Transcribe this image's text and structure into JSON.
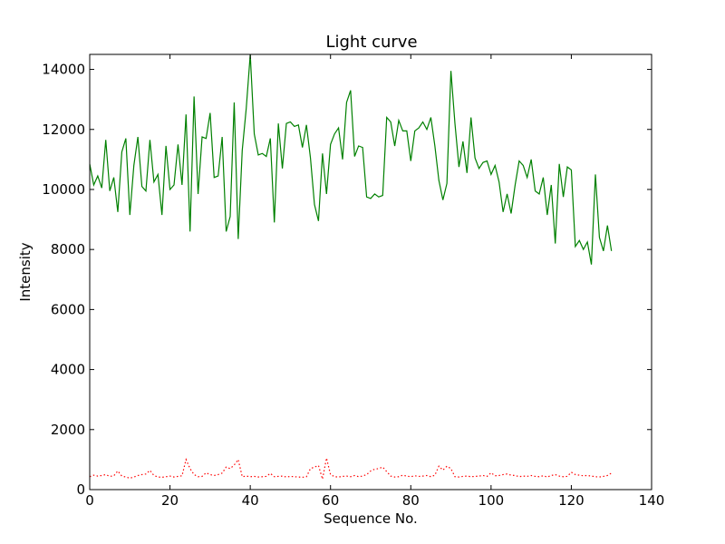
{
  "chart_data": {
    "type": "line",
    "title": "Light curve",
    "xlabel": "Sequence No.",
    "ylabel": "Intensity",
    "xlim": [
      0,
      140
    ],
    "ylim": [
      0,
      14500
    ],
    "xticks": [
      0,
      20,
      40,
      60,
      80,
      100,
      120,
      140
    ],
    "yticks": [
      0,
      2000,
      4000,
      6000,
      8000,
      10000,
      12000,
      14000
    ],
    "grid": false,
    "legend": "none",
    "series": [
      {
        "color": "#008000",
        "style": "solid",
        "x": [
          0,
          1,
          2,
          3,
          4,
          5,
          6,
          7,
          8,
          9,
          10,
          11,
          12,
          13,
          14,
          15,
          16,
          17,
          18,
          19,
          20,
          21,
          22,
          23,
          24,
          25,
          26,
          27,
          28,
          29,
          30,
          31,
          32,
          33,
          34,
          35,
          36,
          37,
          38,
          39,
          40,
          41,
          42,
          43,
          44,
          45,
          46,
          47,
          48,
          49,
          50,
          51,
          52,
          53,
          54,
          55,
          56,
          57,
          58,
          59,
          60,
          61,
          62,
          63,
          64,
          65,
          66,
          67,
          68,
          69,
          70,
          71,
          72,
          73,
          74,
          75,
          76,
          77,
          78,
          79,
          80,
          81,
          82,
          83,
          84,
          85,
          86,
          87,
          88,
          89,
          90,
          91,
          92,
          93,
          94,
          95,
          96,
          97,
          98,
          99,
          100,
          101,
          102,
          103,
          104,
          105,
          106,
          107,
          108,
          109,
          110,
          111,
          112,
          113,
          114,
          115,
          116,
          117,
          118,
          119,
          120,
          121,
          122,
          123,
          124,
          125,
          126,
          127,
          128,
          129,
          130
        ],
        "y": [
          10850,
          10150,
          10450,
          10050,
          11650,
          9950,
          10400,
          9250,
          11250,
          11700,
          9150,
          10800,
          11750,
          10100,
          9950,
          11650,
          10250,
          10500,
          9150,
          11450,
          10000,
          10150,
          11500,
          10150,
          12500,
          8600,
          13100,
          9850,
          11750,
          11700,
          12550,
          10400,
          10450,
          11750,
          8600,
          9100,
          12900,
          8350,
          11300,
          12700,
          14500,
          11850,
          11150,
          11200,
          11100,
          11700,
          8900,
          12200,
          10700,
          12200,
          12250,
          12100,
          12150,
          11400,
          12150,
          11050,
          9500,
          8950,
          11200,
          9850,
          11500,
          11850,
          12050,
          11000,
          12900,
          13300,
          11100,
          11450,
          11400,
          9750,
          9700,
          9850,
          9750,
          9800,
          12400,
          12250,
          11450,
          12300,
          11950,
          11950,
          10950,
          11950,
          12050,
          12250,
          12000,
          12400,
          11450,
          10300,
          9650,
          10200,
          13950,
          12200,
          10750,
          11600,
          10550,
          12400,
          11050,
          10700,
          10900,
          10950,
          10500,
          10800,
          10250,
          9250,
          9850,
          9200,
          10150,
          10950,
          10800,
          10400,
          11000,
          9950,
          9850,
          10400,
          9150,
          10150,
          8200,
          10850,
          9750,
          10750,
          10650,
          8100,
          8300,
          8000,
          8250,
          7500,
          10500,
          8400,
          7950,
          8800,
          7950
        ]
      },
      {
        "color": "#ff0000",
        "style": "dotted",
        "x": [
          0,
          1,
          2,
          3,
          4,
          5,
          6,
          7,
          8,
          9,
          10,
          11,
          12,
          13,
          14,
          15,
          16,
          17,
          18,
          19,
          20,
          21,
          22,
          23,
          24,
          25,
          26,
          27,
          28,
          29,
          30,
          31,
          32,
          33,
          34,
          35,
          36,
          37,
          38,
          39,
          40,
          41,
          42,
          43,
          44,
          45,
          46,
          47,
          48,
          49,
          50,
          51,
          52,
          53,
          54,
          55,
          56,
          57,
          58,
          59,
          60,
          61,
          62,
          63,
          64,
          65,
          66,
          67,
          68,
          69,
          70,
          71,
          72,
          73,
          74,
          75,
          76,
          77,
          78,
          79,
          80,
          81,
          82,
          83,
          84,
          85,
          86,
          87,
          88,
          89,
          90,
          91,
          92,
          93,
          94,
          95,
          96,
          97,
          98,
          99,
          100,
          101,
          102,
          103,
          104,
          105,
          106,
          107,
          108,
          109,
          110,
          111,
          112,
          113,
          114,
          115,
          116,
          117,
          118,
          119,
          120,
          121,
          122,
          123,
          124,
          125,
          126,
          127,
          128,
          129,
          130
        ],
        "y": [
          430,
          480,
          450,
          470,
          500,
          440,
          460,
          620,
          450,
          420,
          380,
          420,
          470,
          500,
          520,
          640,
          470,
          420,
          410,
          430,
          450,
          420,
          440,
          460,
          1000,
          700,
          500,
          430,
          440,
          560,
          500,
          470,
          500,
          550,
          750,
          700,
          820,
          1000,
          430,
          450,
          430,
          440,
          420,
          430,
          440,
          540,
          430,
          440,
          450,
          420,
          440,
          430,
          420,
          410,
          430,
          700,
          750,
          800,
          350,
          1050,
          500,
          430,
          420,
          440,
          450,
          430,
          470,
          430,
          450,
          500,
          620,
          680,
          700,
          750,
          600,
          450,
          420,
          430,
          480,
          450,
          430,
          460,
          440,
          450,
          470,
          430,
          480,
          780,
          650,
          780,
          700,
          430,
          420,
          440,
          450,
          430,
          440,
          450,
          470,
          440,
          560,
          460,
          470,
          500,
          520,
          480,
          470,
          430,
          450,
          440,
          470,
          440,
          430,
          460,
          420,
          470,
          500,
          450,
          430,
          440,
          580,
          500,
          480,
          460,
          470,
          450,
          430,
          420,
          440,
          470,
          550
        ]
      }
    ]
  }
}
